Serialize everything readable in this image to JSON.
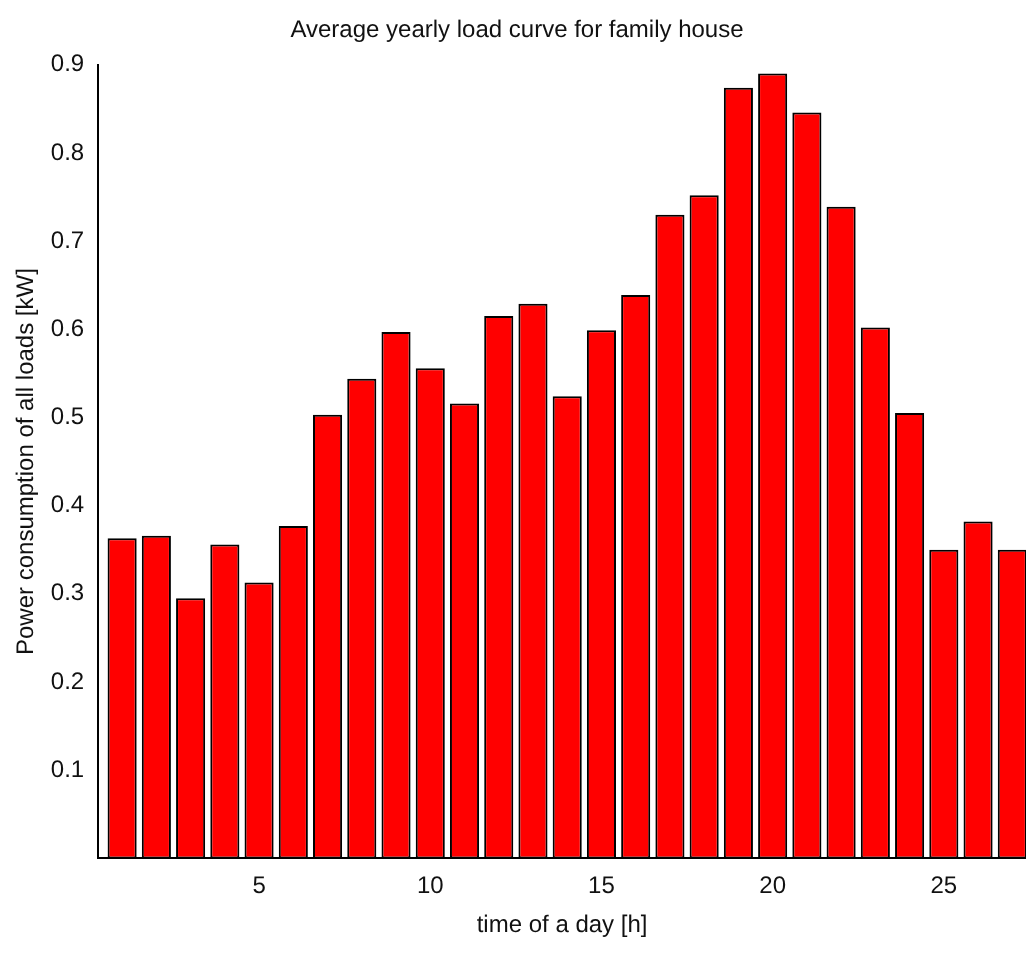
{
  "chart_data": {
    "type": "bar",
    "title": "Average yearly load curve for family house",
    "xlabel": "time of a day [h]",
    "ylabel": "Power consumption of all loads [kW]",
    "x": [
      1,
      2,
      3,
      4,
      5,
      6,
      7,
      8,
      9,
      10,
      11,
      12,
      13,
      14,
      15,
      16,
      17,
      18,
      19,
      20,
      21,
      22,
      23,
      24,
      25,
      26,
      27
    ],
    "values": [
      0.363,
      0.366,
      0.295,
      0.356,
      0.313,
      0.377,
      0.503,
      0.544,
      0.597,
      0.556,
      0.516,
      0.615,
      0.629,
      0.524,
      0.599,
      0.639,
      0.73,
      0.752,
      0.874,
      0.89,
      0.846,
      0.739,
      0.602,
      0.505,
      0.35,
      0.382,
      0.35
    ],
    "color": "#ff0000",
    "xlim": [
      0.3,
      27.4
    ],
    "xticks": [
      5,
      10,
      15,
      20,
      25
    ],
    "ylim": [
      0,
      0.9
    ],
    "yticks": [
      {
        "value": 0.1,
        "label": "0.1"
      },
      {
        "value": 0.2,
        "label": "0.2"
      },
      {
        "value": 0.3,
        "label": "0.3"
      },
      {
        "value": 0.4,
        "label": "0.4"
      },
      {
        "value": 0.5,
        "label": "0.5"
      },
      {
        "value": 0.6,
        "label": "0.6"
      },
      {
        "value": 0.7,
        "label": "0.7"
      },
      {
        "value": 0.8,
        "label": "0.8"
      },
      {
        "value": 0.9,
        "label": "0.9"
      }
    ],
    "grid": false,
    "legend": false
  }
}
